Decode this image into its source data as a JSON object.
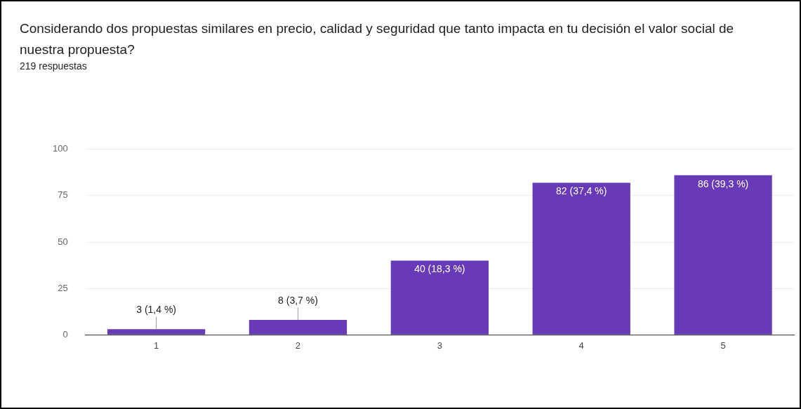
{
  "chart_data": {
    "type": "bar",
    "title": "Considerando dos propuestas similares en precio, calidad y seguridad que tanto impacta en tu decisión el valor social de nuestra propuesta?",
    "subtitle": "219 respuestas",
    "categories": [
      "1",
      "2",
      "3",
      "4",
      "5"
    ],
    "values": [
      3,
      8,
      40,
      82,
      86
    ],
    "value_labels": [
      "3 (1,4 %)",
      "8 (3,7 %)",
      "40 (18,3 %)",
      "82 (37,4 %)",
      "86 (39,3 %)"
    ],
    "color": "#673ab7",
    "ylim": [
      0,
      100
    ],
    "yticks": [
      0,
      25,
      50,
      75,
      100
    ],
    "grid": "y",
    "legend": false
  }
}
